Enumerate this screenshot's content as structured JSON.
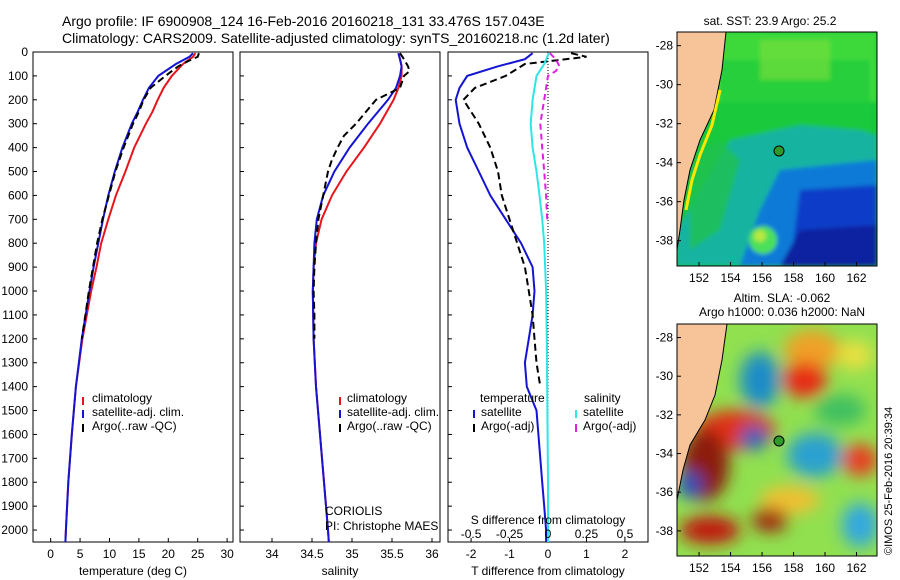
{
  "titles": {
    "line1": "Argo profile: IF 6900908_124 16-Feb-2016 20160218_131 33.476S 157.043E",
    "line2": "Climatology: CARS2009. Satellite-adjusted climatology: synTS_20160218.nc (1.2d later)"
  },
  "right_labels": {
    "sst": "sat. SST: 23.9 Argo: 25.2",
    "sla": "Altim. SLA: -0.062",
    "argo_h": "Argo h1000: 0.036 h2000: NaN",
    "imos": "©IMOS 25-Feb-2016 20:39:34"
  },
  "panel3_text": {
    "temperature": "temperature",
    "salinity": "salinity",
    "satellite": "satellite",
    "argo_adj": "Argo(-adj)",
    "s_diff": "S difference from climatology"
  },
  "credits": {
    "line1": "CORIOLIS",
    "line2": "PI: Christophe MAES"
  },
  "colors": {
    "climatology": "#e8141c",
    "satellite": "#1414d2",
    "argo": "#000000",
    "sal_sat": "#2de6e6",
    "sal_argo": "#e020e0",
    "land": "#f7c49a"
  },
  "chart_data": [
    {
      "type": "line",
      "xlabel": "temperature (deg C)",
      "ylim": [
        2050,
        0
      ],
      "xlim": [
        -3,
        31
      ],
      "xticks": [
        "0",
        "5",
        "10",
        "15",
        "20",
        "25",
        "30"
      ],
      "yticks": [
        "0",
        "100",
        "200",
        "300",
        "400",
        "500",
        "600",
        "700",
        "800",
        "900",
        "1000",
        "1100",
        "1200",
        "1300",
        "1400",
        "1500",
        "1600",
        "1700",
        "1800",
        "1900",
        "2000"
      ],
      "legend": [
        "climatology",
        "satellite-adj. clim.",
        "Argo(..raw -QC)"
      ],
      "series": [
        {
          "name": "climatology",
          "depth": [
            5,
            20,
            50,
            100,
            150,
            200,
            250,
            300,
            400,
            500,
            600,
            700,
            800,
            900,
            1000,
            1200,
            1400,
            1600,
            1800,
            2000,
            2050
          ],
          "values": [
            24.6,
            24.2,
            22.5,
            20.6,
            19.2,
            18.2,
            17.3,
            16.2,
            14.2,
            12.7,
            11.1,
            9.8,
            8.6,
            7.8,
            6.9,
            5.4,
            4.3,
            3.6,
            3.0,
            2.6,
            2.5
          ]
        },
        {
          "name": "satellite-adj. clim.",
          "depth": [
            5,
            20,
            50,
            100,
            150,
            200,
            250,
            300,
            400,
            500,
            600,
            700,
            800,
            900,
            1000,
            1200,
            1400,
            1600,
            1800,
            2000,
            2050
          ],
          "values": [
            24.2,
            23.6,
            21.3,
            18.3,
            16.7,
            15.7,
            14.8,
            13.8,
            12.2,
            10.9,
            9.8,
            8.9,
            8.1,
            7.3,
            6.6,
            5.3,
            4.3,
            3.6,
            3.0,
            2.6,
            2.5
          ]
        },
        {
          "name": "Argo(..raw -QC)",
          "depth": [
            5,
            20,
            40,
            60,
            100,
            150,
            200,
            250,
            300,
            350,
            400,
            500,
            600,
            700,
            800,
            900,
            1000,
            1100,
            1200
          ],
          "values": [
            25.2,
            25.0,
            23.2,
            21.7,
            19.5,
            17.0,
            15.8,
            15.0,
            14.0,
            13.2,
            12.4,
            11.0,
            9.9,
            8.8,
            7.9,
            7.2,
            6.5,
            5.9,
            5.3
          ]
        }
      ]
    },
    {
      "type": "line",
      "xlabel": "salinity",
      "ylim": [
        2050,
        0
      ],
      "xlim": [
        33.6,
        36.1
      ],
      "xticks": [
        "34",
        "34.5",
        "35",
        "35.5",
        "36"
      ],
      "legend": [
        "climatology",
        "satellite-adj. clim.",
        "Argo(..raw -QC)"
      ],
      "series": [
        {
          "name": "climatology",
          "depth": [
            5,
            30,
            60,
            100,
            150,
            200,
            300,
            400,
            500,
            600,
            700,
            800,
            900,
            1000,
            1200,
            1400,
            1600,
            1800,
            2000,
            2050
          ],
          "values": [
            35.58,
            35.6,
            35.62,
            35.62,
            35.58,
            35.52,
            35.35,
            35.15,
            34.93,
            34.75,
            34.62,
            34.55,
            34.52,
            34.51,
            34.52,
            34.55,
            34.6,
            34.65,
            34.7,
            34.71
          ]
        },
        {
          "name": "satellite-adj. clim.",
          "depth": [
            5,
            30,
            60,
            100,
            150,
            200,
            300,
            400,
            500,
            600,
            700,
            800,
            900,
            1000,
            1200,
            1400,
            1600,
            1800,
            2000,
            2050
          ],
          "values": [
            35.58,
            35.6,
            35.62,
            35.6,
            35.55,
            35.45,
            35.2,
            34.97,
            34.78,
            34.64,
            34.56,
            34.53,
            34.52,
            34.51,
            34.52,
            34.55,
            34.6,
            34.65,
            34.7,
            34.71
          ]
        },
        {
          "name": "Argo(..raw -QC)",
          "depth": [
            5,
            30,
            60,
            80,
            100,
            150,
            200,
            300,
            350,
            400,
            450,
            500,
            600,
            700,
            800,
            900,
            1000,
            1100,
            1200
          ],
          "values": [
            35.6,
            35.65,
            35.7,
            35.72,
            35.65,
            35.6,
            35.3,
            35.05,
            34.9,
            34.82,
            34.75,
            34.7,
            34.64,
            34.58,
            34.55,
            34.53,
            34.52,
            34.53,
            34.53
          ]
        }
      ]
    },
    {
      "type": "line",
      "xlabel": "T difference from climatology",
      "ylim": [
        2050,
        0
      ],
      "xlim": [
        -2.6,
        2.6
      ],
      "xticks": [
        "-2",
        "-1",
        "0",
        "1",
        "2"
      ],
      "sticks": [
        "-0.5",
        "-0.25",
        "0",
        "0.25",
        "0.5"
      ],
      "legend": [
        "temperature",
        "satellite",
        "Argo(-adj)",
        "salinity",
        "satellite",
        "Argo(-adj)"
      ],
      "series": [
        {
          "name": "satellite",
          "depth": [
            5,
            30,
            60,
            100,
            150,
            200,
            300,
            400,
            500,
            600,
            700,
            800,
            900,
            1000,
            1100,
            1200,
            1300,
            1400,
            1500,
            1600,
            1700,
            1800,
            1900,
            2000,
            2050
          ],
          "values": [
            -0.4,
            -0.6,
            -1.3,
            -2.1,
            -2.3,
            -2.4,
            -2.3,
            -2.1,
            -1.8,
            -1.5,
            -1.1,
            -0.7,
            -0.4,
            -0.35,
            -0.4,
            -0.5,
            -0.6,
            -0.55,
            -0.3,
            -0.25,
            -0.2,
            -0.15,
            -0.1,
            -0.05,
            -0.05
          ]
        },
        {
          "name": "Argo(-adj)",
          "depth": [
            5,
            20,
            50,
            100,
            150,
            200,
            300,
            400,
            500,
            600,
            700,
            800,
            900,
            1000,
            1100,
            1200,
            1300,
            1400
          ],
          "values": [
            0.6,
            1.0,
            -0.6,
            -1.1,
            -1.9,
            -2.2,
            -1.8,
            -1.5,
            -1.3,
            -1.2,
            -1.0,
            -0.8,
            -0.6,
            -0.5,
            -0.4,
            -0.35,
            -0.3,
            -0.2
          ]
        },
        {
          "name": "salinity satellite",
          "depth": [
            5,
            50,
            100,
            200,
            300,
            400,
            500,
            600,
            700,
            800,
            1000,
            1200,
            1400,
            1600,
            1800,
            2000,
            2050
          ],
          "values": [
            0.02,
            -0.1,
            -0.3,
            -0.4,
            -0.45,
            -0.4,
            -0.3,
            -0.22,
            -0.15,
            -0.1,
            -0.05,
            -0.03,
            -0.02,
            -0.01,
            0.0,
            0.0,
            0.0
          ]
        },
        {
          "name": "salinity Argo(-adj)",
          "depth": [
            5,
            30,
            60,
            80,
            100,
            150,
            200,
            300,
            400,
            500,
            600,
            700
          ],
          "values": [
            0.05,
            0.2,
            0.3,
            0.2,
            0.0,
            -0.05,
            -0.1,
            -0.2,
            -0.15,
            -0.1,
            -0.05,
            -0.02
          ]
        }
      ]
    }
  ],
  "maps": {
    "sst": {
      "lat_ticks": [
        "-28",
        "-30",
        "-32",
        "-34",
        "-36",
        "-38"
      ],
      "lon_ticks": [
        "152",
        "154",
        "156",
        "158",
        "160",
        "162"
      ],
      "argo_lon": 157.0,
      "argo_lat": -33.5
    },
    "sla": {
      "lat_ticks": [
        "-28",
        "-30",
        "-32",
        "-34",
        "-36",
        "-38"
      ],
      "lon_ticks": [
        "152",
        "154",
        "156",
        "158",
        "160",
        "162"
      ],
      "argo_lon": 157.0,
      "argo_lat": -33.5
    }
  }
}
